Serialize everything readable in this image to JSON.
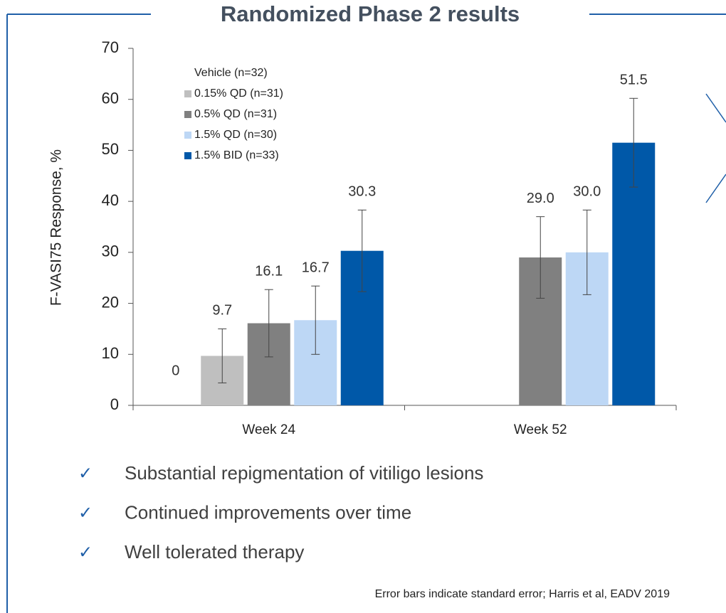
{
  "title": "Randomized Phase 2 results",
  "chart_data": {
    "type": "bar",
    "y_label": "F-VASI75 Response, %",
    "categories": [
      "Week 24",
      "Week 52"
    ],
    "ylim": [
      0,
      70
    ],
    "yticks": [
      0,
      10,
      20,
      30,
      40,
      50,
      60,
      70
    ],
    "legend": "top-left",
    "series": [
      {
        "name": "Vehicle (n=32)",
        "color": "#ffffff",
        "values": [
          0,
          null
        ],
        "errors": [
          null,
          null
        ],
        "value_labels": [
          "0",
          null
        ]
      },
      {
        "name": "0.15% QD (n=31)",
        "color": "#bfbfbf",
        "values": [
          9.7,
          null
        ],
        "errors": [
          5.3,
          null
        ],
        "value_labels": [
          "9.7",
          null
        ]
      },
      {
        "name": "0.5% QD (n=31)",
        "color": "#808080",
        "values": [
          16.1,
          29.0
        ],
        "errors": [
          6.6,
          8.0
        ],
        "value_labels": [
          "16.1",
          "29.0"
        ]
      },
      {
        "name": "1.5% QD (n=30)",
        "color": "#bdd7f5",
        "values": [
          16.7,
          30.0
        ],
        "errors": [
          6.7,
          8.3
        ],
        "value_labels": [
          "16.7",
          "30.0"
        ]
      },
      {
        "name": "1.5% BID (n=33)",
        "color": "#0058a8",
        "values": [
          30.3,
          51.5
        ],
        "errors": [
          8.0,
          8.7
        ],
        "value_labels": [
          "30.3",
          "51.5"
        ]
      }
    ]
  },
  "bullets": [
    "Substantial repigmentation of vitiligo lesions",
    "Continued improvements over time",
    "Well tolerated therapy"
  ],
  "footnote": "Error bars indicate standard error; Harris et al, EADV 2019"
}
